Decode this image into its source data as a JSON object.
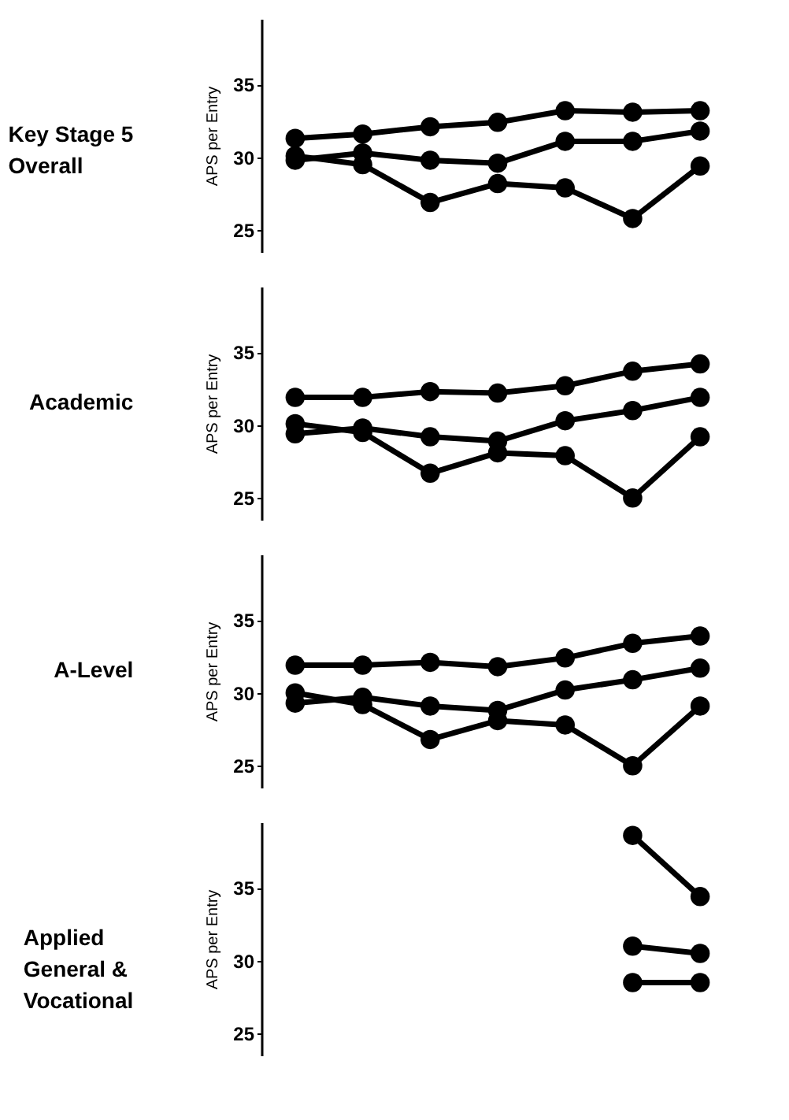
{
  "chart_data": [
    {
      "type": "line",
      "title": "Key Stage 5 Overall",
      "ylabel": "APS per Entry",
      "categories": [
        null,
        null,
        null,
        null,
        null,
        null,
        null
      ],
      "ylim": [
        23.5,
        39.5
      ],
      "yticks": [
        25,
        30,
        35
      ],
      "tick_labels": "y",
      "marker": "circle",
      "line_style": "solid",
      "grid": false,
      "series": [
        {
          "color": "#000000",
          "values": [
            31.3,
            31.6,
            32.1,
            32.4,
            33.2,
            33.1,
            33.2
          ]
        },
        {
          "color": "#000000",
          "values": [
            29.8,
            30.3,
            29.8,
            29.6,
            31.1,
            31.1,
            31.8
          ]
        },
        {
          "color": "#000000",
          "values": [
            30.1,
            29.5,
            26.9,
            28.2,
            27.9,
            25.8,
            29.4
          ]
        }
      ]
    },
    {
      "type": "line",
      "title": "Academic",
      "ylabel": "APS per Entry",
      "categories": [
        null,
        null,
        null,
        null,
        null,
        null,
        null
      ],
      "ylim": [
        23.5,
        39.5
      ],
      "yticks": [
        25,
        30,
        35
      ],
      "tick_labels": "y",
      "marker": "circle",
      "line_style": "solid",
      "grid": false,
      "series": [
        {
          "color": "#000000",
          "values": [
            31.9,
            31.9,
            32.3,
            32.2,
            32.7,
            33.7,
            34.2
          ]
        },
        {
          "color": "#000000",
          "values": [
            29.4,
            29.8,
            29.2,
            28.9,
            30.3,
            31.0,
            31.9
          ]
        },
        {
          "color": "#000000",
          "values": [
            30.1,
            29.5,
            26.7,
            28.1,
            27.9,
            25.0,
            29.2
          ]
        }
      ]
    },
    {
      "type": "line",
      "title": "A-Level",
      "ylabel": "APS per Entry",
      "categories": [
        null,
        null,
        null,
        null,
        null,
        null,
        null
      ],
      "ylim": [
        23.5,
        39.5
      ],
      "yticks": [
        25,
        30,
        35
      ],
      "tick_labels": "y",
      "marker": "circle",
      "line_style": "solid",
      "grid": false,
      "series": [
        {
          "color": "#000000",
          "values": [
            31.9,
            31.9,
            32.1,
            31.8,
            32.4,
            33.4,
            33.9
          ]
        },
        {
          "color": "#000000",
          "values": [
            29.3,
            29.7,
            29.1,
            28.8,
            30.2,
            30.9,
            31.7
          ]
        },
        {
          "color": "#000000",
          "values": [
            30.0,
            29.2,
            26.8,
            28.1,
            27.8,
            25.0,
            29.1
          ]
        }
      ]
    },
    {
      "type": "line",
      "title": "Applied General & Vocational",
      "ylabel": "APS per Entry",
      "categories": [
        null,
        null,
        null,
        null,
        null,
        null,
        null
      ],
      "ylim": [
        23.5,
        39.5
      ],
      "yticks": [
        25,
        30,
        35
      ],
      "tick_labels": "y",
      "marker": "circle",
      "line_style": "solid",
      "grid": false,
      "series": [
        {
          "color": "#000000",
          "values": [
            null,
            null,
            null,
            null,
            null,
            38.6,
            34.4
          ]
        },
        {
          "color": "#000000",
          "values": [
            null,
            null,
            null,
            null,
            null,
            31.0,
            30.5
          ]
        },
        {
          "color": "#000000",
          "values": [
            null,
            null,
            null,
            null,
            null,
            28.5,
            28.5
          ]
        }
      ]
    }
  ]
}
